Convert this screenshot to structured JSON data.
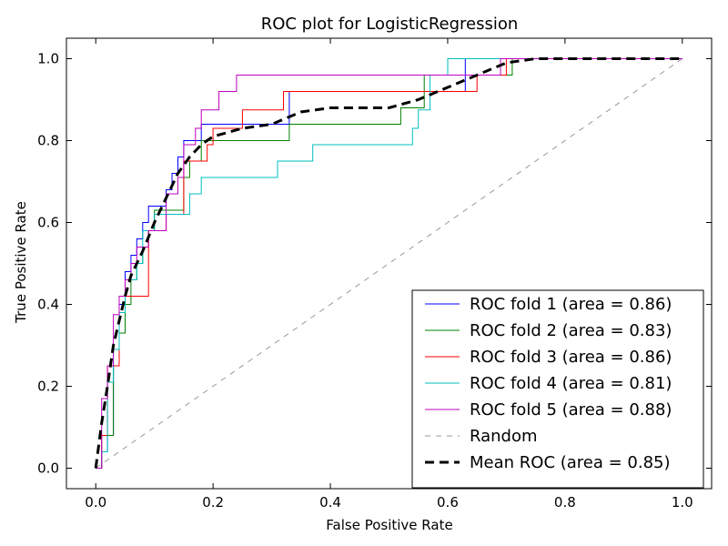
{
  "chart_data": {
    "type": "line",
    "title": "ROC plot for LogisticRegression",
    "xlabel": "False Positive Rate",
    "ylabel": "True Positive Rate",
    "xlim": [
      -0.05,
      1.05
    ],
    "ylim": [
      -0.05,
      1.05
    ],
    "xticks": [
      0.0,
      0.2,
      0.4,
      0.6,
      0.8,
      1.0
    ],
    "xtick_labels": [
      "0.0",
      "0.2",
      "0.4",
      "0.6",
      "0.8",
      "1.0"
    ],
    "yticks": [
      0.0,
      0.2,
      0.4,
      0.6,
      0.8,
      1.0
    ],
    "ytick_labels": [
      "0.0",
      "0.2",
      "0.4",
      "0.6",
      "0.8",
      "1.0"
    ],
    "grid": false,
    "legend_position": "lower-right",
    "series": [
      {
        "name": "ROC fold 1 (area = 0.86)",
        "color": "#0000ff",
        "style": "solid",
        "x": [
          0.0,
          0.0,
          0.01,
          0.01,
          0.02,
          0.02,
          0.03,
          0.03,
          0.04,
          0.04,
          0.05,
          0.05,
          0.06,
          0.06,
          0.07,
          0.07,
          0.08,
          0.08,
          0.09,
          0.09,
          0.1,
          0.1,
          0.12,
          0.12,
          0.13,
          0.13,
          0.14,
          0.14,
          0.15,
          0.15,
          0.18,
          0.18,
          0.21,
          0.21,
          0.33,
          0.33,
          0.63,
          0.63,
          1.0
        ],
        "y": [
          0.0,
          0.0,
          0.0,
          0.04,
          0.04,
          0.08,
          0.08,
          0.25,
          0.25,
          0.4,
          0.4,
          0.48,
          0.48,
          0.52,
          0.52,
          0.56,
          0.56,
          0.6,
          0.6,
          0.64,
          0.64,
          0.64,
          0.64,
          0.68,
          0.68,
          0.72,
          0.72,
          0.76,
          0.76,
          0.8,
          0.8,
          0.84,
          0.84,
          0.84,
          0.84,
          0.92,
          0.92,
          1.0,
          1.0
        ]
      },
      {
        "name": "ROC fold 2 (area = 0.83)",
        "color": "#008000",
        "style": "solid",
        "x": [
          0.0,
          0.01,
          0.01,
          0.03,
          0.03,
          0.04,
          0.04,
          0.05,
          0.05,
          0.06,
          0.06,
          0.07,
          0.07,
          0.08,
          0.08,
          0.09,
          0.09,
          0.1,
          0.1,
          0.15,
          0.15,
          0.16,
          0.16,
          0.18,
          0.18,
          0.33,
          0.33,
          0.52,
          0.52,
          0.56,
          0.56,
          0.71,
          0.71,
          1.0
        ],
        "y": [
          0.0,
          0.0,
          0.08,
          0.08,
          0.25,
          0.25,
          0.33,
          0.33,
          0.4,
          0.4,
          0.46,
          0.46,
          0.5,
          0.5,
          0.54,
          0.54,
          0.58,
          0.58,
          0.63,
          0.63,
          0.71,
          0.71,
          0.75,
          0.75,
          0.8,
          0.8,
          0.84,
          0.84,
          0.88,
          0.88,
          0.96,
          0.96,
          1.0,
          1.0
        ]
      },
      {
        "name": "ROC fold 3 (area = 0.86)",
        "color": "#ff0000",
        "style": "solid",
        "x": [
          0.0,
          0.01,
          0.01,
          0.02,
          0.02,
          0.04,
          0.04,
          0.05,
          0.05,
          0.09,
          0.09,
          0.12,
          0.12,
          0.15,
          0.15,
          0.19,
          0.19,
          0.2,
          0.2,
          0.25,
          0.25,
          0.32,
          0.32,
          0.65,
          0.65,
          0.7,
          0.7,
          1.0
        ],
        "y": [
          0.0,
          0.0,
          0.08,
          0.08,
          0.25,
          0.25,
          0.38,
          0.38,
          0.42,
          0.42,
          0.58,
          0.58,
          0.62,
          0.62,
          0.75,
          0.75,
          0.79,
          0.79,
          0.83,
          0.83,
          0.875,
          0.875,
          0.92,
          0.92,
          0.96,
          0.96,
          1.0,
          1.0
        ]
      },
      {
        "name": "ROC fold 4 (area = 0.81)",
        "color": "#00bfbf",
        "style": "solid",
        "x": [
          0.0,
          0.01,
          0.01,
          0.02,
          0.02,
          0.03,
          0.03,
          0.04,
          0.04,
          0.05,
          0.05,
          0.07,
          0.07,
          0.08,
          0.08,
          0.1,
          0.1,
          0.13,
          0.13,
          0.16,
          0.16,
          0.18,
          0.18,
          0.31,
          0.31,
          0.37,
          0.37,
          0.54,
          0.54,
          0.55,
          0.55,
          0.57,
          0.57,
          0.6,
          0.6,
          1.0
        ],
        "y": [
          0.0,
          0.0,
          0.04,
          0.04,
          0.21,
          0.21,
          0.29,
          0.29,
          0.38,
          0.38,
          0.46,
          0.46,
          0.5,
          0.5,
          0.58,
          0.58,
          0.62,
          0.62,
          0.62,
          0.62,
          0.67,
          0.67,
          0.71,
          0.71,
          0.75,
          0.75,
          0.79,
          0.79,
          0.83,
          0.83,
          0.875,
          0.875,
          0.96,
          0.96,
          1.0,
          1.0
        ]
      },
      {
        "name": "ROC fold 5 (area = 0.88)",
        "color": "#bf00bf",
        "style": "solid",
        "x": [
          0.0,
          0.01,
          0.01,
          0.02,
          0.02,
          0.03,
          0.03,
          0.04,
          0.04,
          0.05,
          0.05,
          0.06,
          0.06,
          0.07,
          0.07,
          0.09,
          0.09,
          0.12,
          0.12,
          0.14,
          0.14,
          0.15,
          0.15,
          0.17,
          0.17,
          0.18,
          0.18,
          0.21,
          0.21,
          0.24,
          0.24,
          0.69,
          0.69,
          1.0
        ],
        "y": [
          0.0,
          0.0,
          0.17,
          0.17,
          0.25,
          0.25,
          0.375,
          0.375,
          0.42,
          0.42,
          0.46,
          0.46,
          0.5,
          0.5,
          0.54,
          0.54,
          0.58,
          0.58,
          0.67,
          0.67,
          0.71,
          0.71,
          0.79,
          0.79,
          0.83,
          0.83,
          0.875,
          0.875,
          0.92,
          0.92,
          0.96,
          0.96,
          1.0,
          1.0
        ]
      },
      {
        "name": "Random",
        "color": "#999999",
        "style": "dashed",
        "x": [
          0.0,
          1.0
        ],
        "y": [
          0.0,
          1.0
        ]
      },
      {
        "name": "Mean ROC (area = 0.85)",
        "color": "#000000",
        "style": "bold-dashed",
        "x": [
          0.0,
          0.01,
          0.02,
          0.03,
          0.04,
          0.05,
          0.06,
          0.08,
          0.1,
          0.12,
          0.14,
          0.16,
          0.18,
          0.2,
          0.25,
          0.3,
          0.35,
          0.4,
          0.45,
          0.5,
          0.55,
          0.6,
          0.65,
          0.7,
          0.75,
          0.8,
          0.85,
          0.9,
          0.95,
          1.0
        ],
        "y": [
          0.0,
          0.11,
          0.2,
          0.3,
          0.36,
          0.42,
          0.47,
          0.53,
          0.6,
          0.66,
          0.72,
          0.76,
          0.79,
          0.81,
          0.83,
          0.84,
          0.87,
          0.88,
          0.88,
          0.88,
          0.9,
          0.93,
          0.96,
          0.99,
          1.0,
          1.0,
          1.0,
          1.0,
          1.0,
          1.0
        ]
      }
    ]
  }
}
